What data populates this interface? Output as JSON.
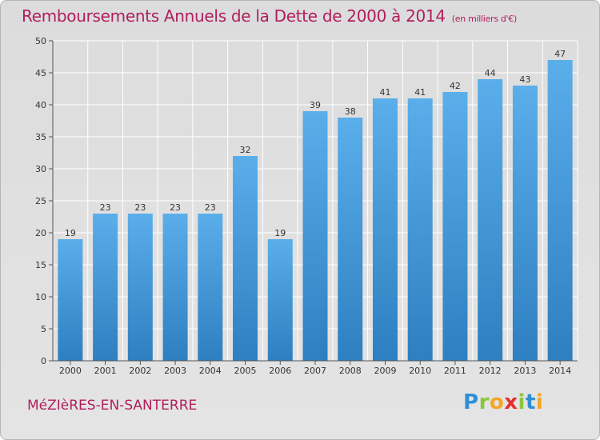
{
  "header": {
    "title": "Remboursements Annuels de la Dette de 2000 à 2014",
    "unit": "(en milliers d'€)"
  },
  "footer": {
    "town": "MéZIèRES-EN-SANTERRE",
    "logo": [
      "P",
      "r",
      "o",
      "x",
      "i",
      "t",
      "i"
    ]
  },
  "chart_data": {
    "type": "bar",
    "title": "Remboursements Annuels de la Dette de 2000 à 2014",
    "xlabel": "",
    "ylabel": "",
    "categories": [
      "2000",
      "2001",
      "2002",
      "2003",
      "2004",
      "2005",
      "2006",
      "2007",
      "2008",
      "2009",
      "2010",
      "2011",
      "2012",
      "2013",
      "2014"
    ],
    "values": [
      19,
      23,
      23,
      23,
      23,
      32,
      19,
      39,
      38,
      41,
      41,
      42,
      44,
      43,
      47
    ],
    "ylim": [
      0,
      50
    ],
    "yticks": [
      0,
      5,
      10,
      15,
      20,
      25,
      30,
      35,
      40,
      45,
      50
    ],
    "grid": true,
    "colors": {
      "bar_light": "#5aaeea",
      "bar_dark": "#2e7fc0",
      "grid": "#ffffff",
      "axis": "#555555"
    }
  }
}
